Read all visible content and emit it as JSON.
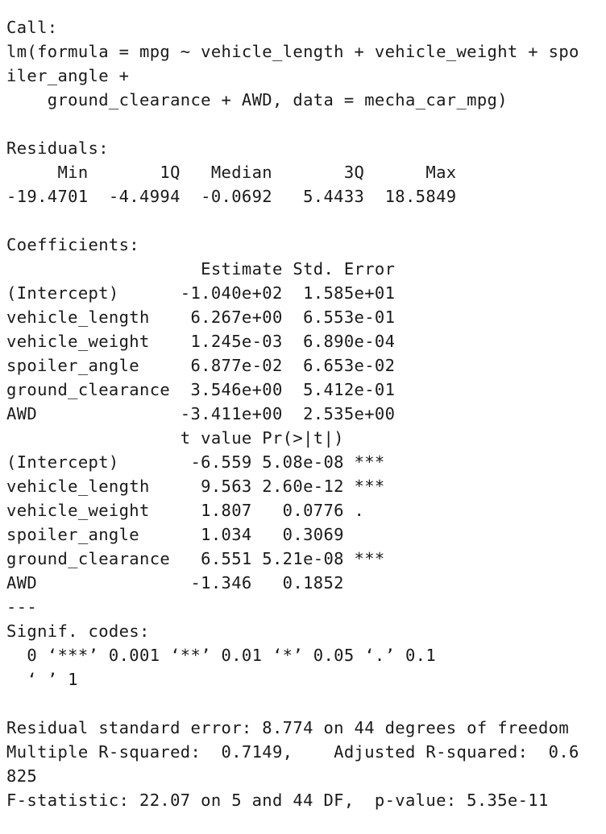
{
  "console": {
    "lines": [
      "Call:",
      "lm(formula = mpg ~ vehicle_length + vehicle_weight + spo",
      "iler_angle +",
      "    ground_clearance + AWD, data = mecha_car_mpg)",
      "",
      "Residuals:",
      "     Min       1Q   Median       3Q      Max",
      "-19.4701  -4.4994  -0.0692   5.4433  18.5849",
      "",
      "Coefficients:",
      "                   Estimate Std. Error",
      "(Intercept)      -1.040e+02  1.585e+01",
      "vehicle_length    6.267e+00  6.553e-01",
      "vehicle_weight    1.245e-03  6.890e-04",
      "spoiler_angle     6.877e-02  6.653e-02",
      "ground_clearance  3.546e+00  5.412e-01",
      "AWD              -3.411e+00  2.535e+00",
      "                 t value Pr(>|t|)",
      "(Intercept)       -6.559 5.08e-08 ***",
      "vehicle_length     9.563 2.60e-12 ***",
      "vehicle_weight     1.807   0.0776 .",
      "spoiler_angle      1.034   0.3069",
      "ground_clearance   6.551 5.21e-08 ***",
      "AWD               -1.346   0.1852",
      "---",
      "Signif. codes:",
      "  0 ‘***’ 0.001 ‘**’ 0.01 ‘*’ 0.05 ‘.’ 0.1",
      "  ‘ ’ 1",
      "",
      "Residual standard error: 8.774 on 44 degrees of freedom",
      "Multiple R-squared:  0.7149,    Adjusted R-squared:  0.6",
      "825",
      "F-statistic: 22.07 on 5 and 44 DF,  p-value: 5.35e-11"
    ]
  }
}
